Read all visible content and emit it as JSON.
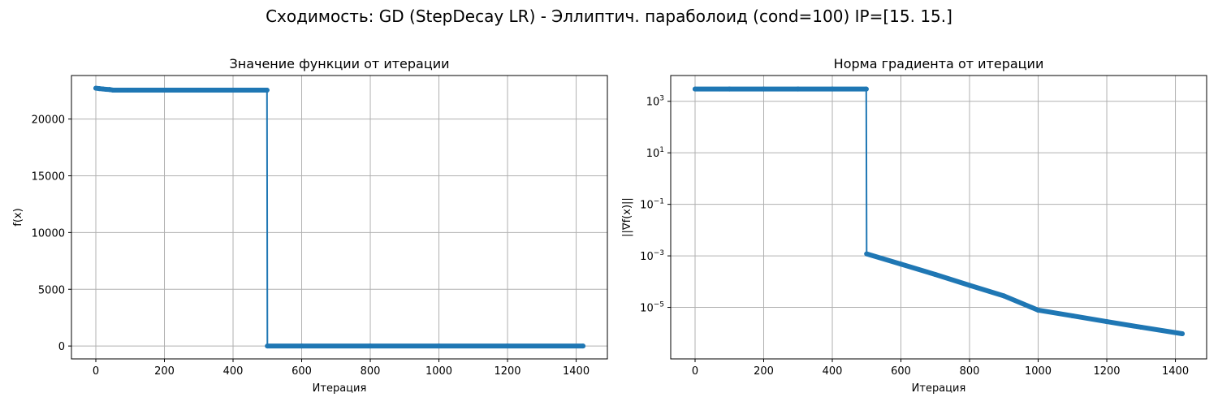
{
  "suptitle": "Сходимость: GD (StepDecay LR) - Эллиптич. параболоид (cond=100) IP=[15. 15.]",
  "colors": {
    "series": "#1f77b4",
    "grid": "#b0b0b0"
  },
  "chart_data": [
    {
      "type": "line",
      "title": "Значение функции от итерации",
      "xlabel": "Итерация",
      "ylabel": "f(x)",
      "yscale": "linear",
      "grid": true,
      "xlim": [
        -71,
        1491
      ],
      "ylim": [
        -1135,
        23835
      ],
      "xticks": [
        0,
        200,
        400,
        600,
        800,
        1000,
        1200,
        1400
      ],
      "yticks": [
        0,
        5000,
        10000,
        15000,
        20000
      ],
      "ytick_labels": [
        "0",
        "5000",
        "10000",
        "15000",
        "20000"
      ],
      "series": [
        {
          "x": [
            0,
            10,
            20,
            30,
            40,
            50,
            100,
            200,
            300,
            400,
            499,
            500,
            600,
            800,
            1000,
            1200,
            1420
          ],
          "y": [
            22720,
            22680,
            22650,
            22620,
            22600,
            22550,
            22550,
            22550,
            22550,
            22550,
            22550,
            0,
            0,
            0,
            0,
            0,
            0
          ]
        }
      ]
    },
    {
      "type": "line",
      "title": "Норма градиента от итерации",
      "xlabel": "Итерация",
      "ylabel": "||∇f(x)||",
      "yscale": "log",
      "grid": true,
      "xlim": [
        -71,
        1491
      ],
      "ylim": [
        1e-07,
        10000.0
      ],
      "xticks": [
        0,
        200,
        400,
        600,
        800,
        1000,
        1200,
        1400
      ],
      "yticks": [
        1e-05,
        0.001,
        0.1,
        10,
        1000
      ],
      "ytick_labels": [
        "10",
        "10",
        "10",
        "10",
        "10"
      ],
      "ytick_exponents": [
        "−5",
        "−3",
        "−1",
        "1",
        "3"
      ],
      "series": [
        {
          "x": [
            0,
            100,
            200,
            300,
            400,
            499,
            500,
            600,
            700,
            800,
            900,
            1000,
            1100,
            1200,
            1300,
            1420
          ],
          "y": [
            3000,
            3000,
            3000,
            3000,
            3000,
            3000,
            0.0012,
            0.00048,
            0.00019,
            7.2e-05,
            2.8e-05,
            7.8e-06,
            4.7e-06,
            2.8e-06,
            1.7e-06,
            9.5e-07
          ]
        }
      ]
    }
  ]
}
